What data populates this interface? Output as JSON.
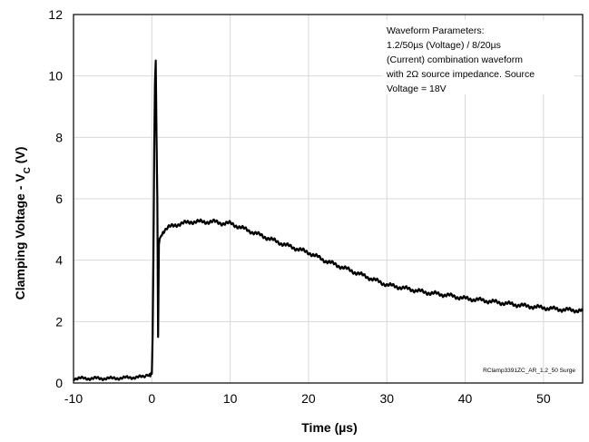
{
  "chart_data": {
    "type": "line",
    "title": "",
    "xlabel": "Time (µs)",
    "ylabel": "Clamping Voltage - V",
    "ylabel_subscript": "C",
    "ylabel_suffix": " (V)",
    "xlim": [
      -10,
      55
    ],
    "ylim": [
      0,
      12
    ],
    "xticks": [
      -10,
      0,
      10,
      20,
      30,
      40,
      50
    ],
    "yticks": [
      0,
      2,
      4,
      6,
      8,
      10,
      12
    ],
    "grid": true,
    "legend": "none",
    "annotation_lines": [
      "Waveform Parameters:",
      "1.2/50µs (Voltage) / 8/20µs",
      "(Current) combination waveform",
      "with 2Ω source impedance. Source",
      "Voltage =  18V"
    ],
    "credit": "RClamp3391ZC_AR_1.2_50 Surge",
    "series": [
      {
        "color": "#000000",
        "x": [
          -10,
          -5,
          -1,
          -0.2,
          0,
          0.1,
          0.2,
          0.3,
          0.4,
          0.5,
          0.6,
          0.7,
          0.8,
          0.9,
          1.0,
          1.2,
          1.5,
          2,
          3,
          4,
          5,
          6,
          7,
          8,
          9,
          10,
          11,
          12,
          13,
          14,
          15,
          17,
          20,
          22,
          25,
          27,
          30,
          32,
          35,
          38,
          40,
          42,
          45,
          48,
          50,
          52,
          55
        ],
        "y": [
          0.15,
          0.15,
          0.2,
          0.25,
          0.3,
          1.5,
          4.0,
          7.5,
          9.8,
          10.5,
          8.0,
          6.0,
          1.5,
          4.5,
          4.7,
          4.8,
          4.95,
          5.05,
          5.15,
          5.2,
          5.25,
          5.25,
          5.25,
          5.25,
          5.2,
          5.2,
          5.1,
          5.0,
          4.9,
          4.8,
          4.7,
          4.5,
          4.25,
          4.0,
          3.7,
          3.5,
          3.2,
          3.1,
          2.95,
          2.85,
          2.75,
          2.7,
          2.6,
          2.5,
          2.45,
          2.4,
          2.35
        ]
      }
    ]
  }
}
